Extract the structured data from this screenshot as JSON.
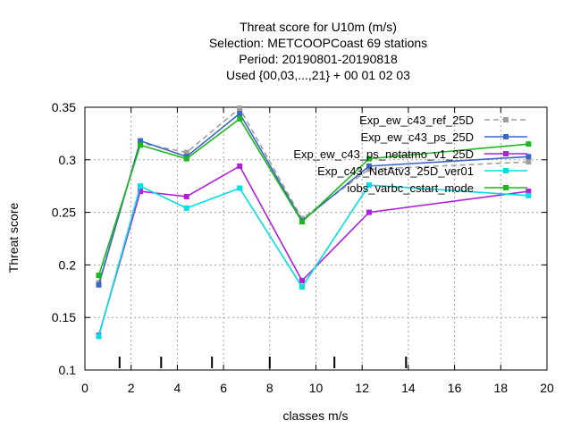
{
  "chart_data": {
    "type": "line",
    "title_lines": [
      "Threat score  for U10m (m/s)",
      "Selection: METCOOPCoast     69 stations",
      "Period: 20190801-20190818",
      "Used {00,03,...,21} + 00 01 02 03"
    ],
    "xlabel": "classes m/s",
    "ylabel": "Threat score",
    "xlim": [
      0,
      20
    ],
    "ylim": [
      0.1,
      0.35
    ],
    "xticks": [
      0,
      2,
      4,
      6,
      8,
      10,
      12,
      14,
      16,
      18,
      20
    ],
    "yticks": [
      0.1,
      0.15,
      0.2,
      0.25,
      0.3,
      0.35
    ],
    "ytick_labels": [
      "0.1",
      "0.15",
      "0.2",
      "0.25",
      "0.3",
      "0.35"
    ],
    "grid": true,
    "legend_position": "top-right",
    "class_markers": [
      1.5,
      3.3,
      5.5,
      8.0,
      10.8,
      13.9
    ],
    "series": [
      {
        "name": "Exp_ew_c43_ref_25D",
        "color": "#a0a0a0",
        "dashed": true,
        "x": [
          0.6,
          2.4,
          4.4,
          6.7,
          9.4,
          12.3,
          19.2
        ],
        "y": [
          0.183,
          0.316,
          0.307,
          0.349,
          0.244,
          0.291,
          0.298
        ]
      },
      {
        "name": "Exp_ew_c43_ps_25D",
        "color": "#3a66c4",
        "dashed": false,
        "x": [
          0.6,
          2.4,
          4.4,
          6.7,
          9.4,
          12.3,
          19.2
        ],
        "y": [
          0.181,
          0.318,
          0.303,
          0.344,
          0.242,
          0.294,
          0.303
        ]
      },
      {
        "name": "Exp_ew_c43_ps_netatmo_v1_25D",
        "color": "#b01fdc",
        "dashed": false,
        "x": [
          0.6,
          2.4,
          4.4,
          6.7,
          9.4,
          12.3,
          19.2
        ],
        "y": [
          0.133,
          0.27,
          0.265,
          0.294,
          0.185,
          0.25,
          0.27
        ]
      },
      {
        "name": "Exp_c43_NetAtv3_25D_ver01",
        "color": "#00e0e0",
        "dashed": false,
        "x": [
          0.6,
          2.4,
          4.4,
          6.7,
          9.4,
          12.3,
          19.2
        ],
        "y": [
          0.132,
          0.275,
          0.254,
          0.273,
          0.179,
          0.276,
          0.266
        ]
      },
      {
        "name": "iobs_varbc_cstart_mode",
        "color": "#1cb81c",
        "dashed": false,
        "x": [
          0.6,
          2.4,
          4.4,
          6.7,
          9.4,
          12.3,
          19.2
        ],
        "y": [
          0.19,
          0.314,
          0.301,
          0.339,
          0.241,
          0.301,
          0.315
        ]
      }
    ]
  }
}
